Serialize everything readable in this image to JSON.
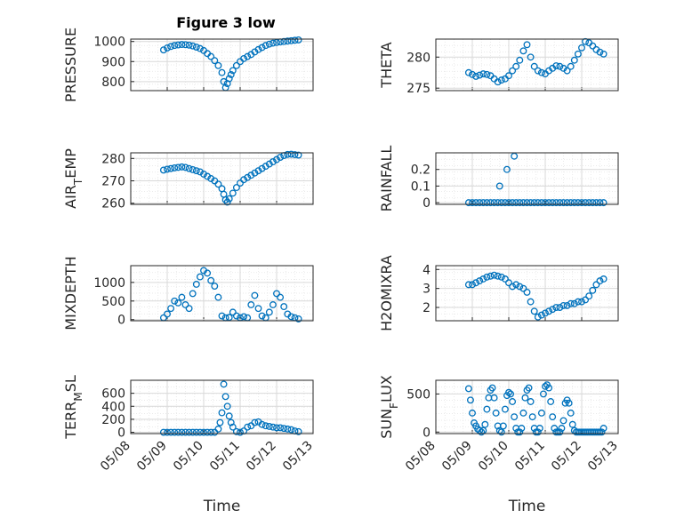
{
  "chart_data": [
    {
      "type": "scatter",
      "title": "Figure 3 low",
      "ylabel": "PRESSURE",
      "ylim": [
        755,
        1012
      ],
      "yticks": [
        800,
        900,
        1000
      ],
      "xlim": [
        0,
        5
      ],
      "xlabel": "",
      "x": [
        0.9,
        1.0,
        1.1,
        1.2,
        1.3,
        1.4,
        1.5,
        1.6,
        1.7,
        1.8,
        1.9,
        2.0,
        2.1,
        2.2,
        2.3,
        2.4,
        2.5,
        2.55,
        2.6,
        2.65,
        2.7,
        2.75,
        2.8,
        2.9,
        3.0,
        3.1,
        3.2,
        3.3,
        3.4,
        3.5,
        3.6,
        3.7,
        3.8,
        3.9,
        4.0,
        4.1,
        4.2,
        4.3,
        4.4,
        4.5,
        4.6
      ],
      "y": [
        958,
        968,
        975,
        980,
        983,
        985,
        984,
        982,
        978,
        972,
        965,
        955,
        940,
        925,
        905,
        880,
        845,
        800,
        770,
        790,
        815,
        835,
        855,
        880,
        900,
        915,
        925,
        935,
        948,
        960,
        970,
        980,
        987,
        992,
        995,
        998,
        1000,
        1002,
        1004,
        1006,
        1008
      ]
    },
    {
      "type": "scatter",
      "title": "",
      "ylabel": "THETA",
      "ylim": [
        274.6,
        282.9
      ],
      "yticks": [
        275,
        280
      ],
      "xlim": [
        0,
        5
      ],
      "xlabel": "",
      "x": [
        0.9,
        1.0,
        1.1,
        1.2,
        1.3,
        1.4,
        1.5,
        1.6,
        1.7,
        1.8,
        1.9,
        2.0,
        2.1,
        2.2,
        2.3,
        2.4,
        2.5,
        2.6,
        2.7,
        2.8,
        2.9,
        3.0,
        3.1,
        3.2,
        3.3,
        3.4,
        3.5,
        3.6,
        3.7,
        3.8,
        3.9,
        4.0,
        4.1,
        4.2,
        4.3,
        4.4,
        4.5,
        4.6
      ],
      "y": [
        277.5,
        277.2,
        276.9,
        277.1,
        277.3,
        277.2,
        277.0,
        276.5,
        276.0,
        276.3,
        276.5,
        277.0,
        277.8,
        278.5,
        279.5,
        281.0,
        282.0,
        280.0,
        278.5,
        277.8,
        277.5,
        277.3,
        277.8,
        278.2,
        278.6,
        278.5,
        278.2,
        277.8,
        278.5,
        279.5,
        280.5,
        281.5,
        282.5,
        282.3,
        281.8,
        281.2,
        280.8,
        280.5
      ]
    },
    {
      "type": "scatter",
      "title": "",
      "ylabel": "AIR_TEMP",
      "ylim": [
        259.5,
        282.5
      ],
      "yticks": [
        260,
        270,
        280
      ],
      "xlim": [
        0,
        5
      ],
      "xlabel": "",
      "x": [
        0.9,
        1.0,
        1.1,
        1.2,
        1.3,
        1.4,
        1.5,
        1.6,
        1.7,
        1.8,
        1.9,
        2.0,
        2.1,
        2.2,
        2.3,
        2.4,
        2.5,
        2.55,
        2.6,
        2.65,
        2.7,
        2.8,
        2.9,
        3.0,
        3.1,
        3.2,
        3.3,
        3.4,
        3.5,
        3.6,
        3.7,
        3.8,
        3.9,
        4.0,
        4.1,
        4.2,
        4.3,
        4.4,
        4.5,
        4.6
      ],
      "y": [
        274.8,
        275.2,
        275.5,
        275.8,
        276.0,
        276.2,
        276.0,
        275.5,
        275.0,
        274.5,
        274.0,
        273.0,
        272.0,
        271.0,
        270.0,
        268.5,
        266.5,
        264.0,
        261.5,
        260.5,
        262.0,
        264.5,
        267.0,
        269.0,
        270.5,
        271.5,
        272.5,
        273.5,
        274.5,
        275.5,
        276.5,
        277.5,
        278.5,
        279.5,
        280.5,
        281.3,
        281.8,
        281.9,
        281.7,
        281.5
      ]
    },
    {
      "type": "scatter",
      "title": "",
      "ylabel": "RAINFALL",
      "ylim": [
        -0.01,
        0.3
      ],
      "yticks": [
        0,
        0.1,
        0.2
      ],
      "xlim": [
        0,
        5
      ],
      "xlabel": "",
      "x": [
        0.9,
        1.0,
        1.1,
        1.2,
        1.3,
        1.4,
        1.5,
        1.6,
        1.7,
        1.75,
        1.8,
        1.9,
        1.95,
        2.0,
        2.1,
        2.15,
        2.2,
        2.3,
        2.4,
        2.5,
        2.6,
        2.7,
        2.8,
        2.9,
        3.0,
        3.1,
        3.2,
        3.3,
        3.4,
        3.5,
        3.6,
        3.7,
        3.8,
        3.9,
        4.0,
        4.1,
        4.2,
        4.3,
        4.4,
        4.5,
        4.6
      ],
      "y": [
        0,
        0,
        0,
        0,
        0,
        0,
        0,
        0,
        0,
        0.1,
        0,
        0,
        0.2,
        0,
        0,
        0.28,
        0,
        0,
        0,
        0,
        0,
        0,
        0,
        0,
        0,
        0,
        0,
        0,
        0,
        0,
        0,
        0,
        0,
        0,
        0,
        0,
        0,
        0,
        0,
        0,
        0
      ]
    },
    {
      "type": "scatter",
      "title": "",
      "ylabel": "MIXDEPTH",
      "ylim": [
        -30,
        1450
      ],
      "yticks": [
        0,
        500,
        1000
      ],
      "xlim": [
        0,
        5
      ],
      "xlabel": "",
      "x": [
        0.9,
        1.0,
        1.1,
        1.2,
        1.3,
        1.4,
        1.5,
        1.6,
        1.7,
        1.8,
        1.9,
        2.0,
        2.1,
        2.2,
        2.3,
        2.4,
        2.5,
        2.6,
        2.7,
        2.8,
        2.9,
        3.0,
        3.1,
        3.2,
        3.3,
        3.4,
        3.5,
        3.6,
        3.7,
        3.8,
        3.9,
        4.0,
        4.1,
        4.2,
        4.3,
        4.4,
        4.5,
        4.6
      ],
      "y": [
        50,
        150,
        300,
        500,
        450,
        600,
        400,
        300,
        700,
        950,
        1150,
        1320,
        1250,
        1050,
        900,
        600,
        100,
        50,
        60,
        200,
        100,
        50,
        80,
        50,
        400,
        650,
        300,
        100,
        50,
        200,
        400,
        700,
        600,
        350,
        150,
        80,
        50,
        20
      ]
    },
    {
      "type": "scatter",
      "title": "",
      "ylabel": "H2OMIXRA",
      "ylim": [
        1.3,
        4.2
      ],
      "yticks": [
        2,
        3,
        4
      ],
      "xlim": [
        0,
        5
      ],
      "xlabel": "",
      "x": [
        0.9,
        1.0,
        1.1,
        1.2,
        1.3,
        1.4,
        1.5,
        1.6,
        1.7,
        1.8,
        1.9,
        2.0,
        2.1,
        2.2,
        2.3,
        2.4,
        2.5,
        2.6,
        2.7,
        2.8,
        2.9,
        3.0,
        3.1,
        3.2,
        3.3,
        3.4,
        3.5,
        3.6,
        3.7,
        3.8,
        3.9,
        4.0,
        4.1,
        4.2,
        4.3,
        4.4,
        4.5,
        4.6
      ],
      "y": [
        3.2,
        3.2,
        3.3,
        3.4,
        3.5,
        3.6,
        3.65,
        3.7,
        3.65,
        3.6,
        3.5,
        3.3,
        3.1,
        3.2,
        3.1,
        3.0,
        2.8,
        2.3,
        1.8,
        1.5,
        1.6,
        1.7,
        1.8,
        1.9,
        2.0,
        2.0,
        2.1,
        2.1,
        2.2,
        2.2,
        2.3,
        2.3,
        2.4,
        2.6,
        2.9,
        3.2,
        3.4,
        3.5
      ]
    },
    {
      "type": "scatter",
      "title": "",
      "ylabel": "TERR_MSL",
      "ylim": [
        -20,
        800
      ],
      "yticks": [
        0,
        200,
        400,
        600
      ],
      "xlim": [
        0,
        5
      ],
      "xlabel": "Time",
      "xticklabels": [
        "05/08",
        "05/09",
        "05/10",
        "05/11",
        "05/12",
        "05/13"
      ],
      "x": [
        0.9,
        1.0,
        1.1,
        1.2,
        1.3,
        1.4,
        1.5,
        1.6,
        1.7,
        1.8,
        1.9,
        2.0,
        2.1,
        2.2,
        2.3,
        2.4,
        2.45,
        2.5,
        2.55,
        2.6,
        2.65,
        2.7,
        2.75,
        2.8,
        2.9,
        3.0,
        3.1,
        3.2,
        3.3,
        3.4,
        3.5,
        3.6,
        3.7,
        3.8,
        3.9,
        4.0,
        4.1,
        4.2,
        4.3,
        4.4,
        4.5,
        4.6
      ],
      "y": [
        0,
        0,
        0,
        0,
        0,
        0,
        0,
        0,
        0,
        0,
        0,
        0,
        0,
        0,
        0,
        50,
        150,
        300,
        740,
        550,
        400,
        250,
        150,
        80,
        10,
        0,
        20,
        80,
        100,
        150,
        160,
        120,
        100,
        90,
        80,
        70,
        70,
        60,
        50,
        40,
        20,
        10
      ]
    },
    {
      "type": "scatter",
      "title": "",
      "ylabel": "SUN_FLUX",
      "ylim": [
        -20,
        680
      ],
      "yticks": [
        0,
        500
      ],
      "xlim": [
        0,
        5
      ],
      "xlabel": "Time",
      "xticklabels": [
        "05/08",
        "05/09",
        "05/10",
        "05/11",
        "05/12",
        "05/13"
      ],
      "x": [
        0.9,
        0.95,
        1.0,
        1.05,
        1.1,
        1.15,
        1.2,
        1.25,
        1.3,
        1.35,
        1.4,
        1.45,
        1.5,
        1.55,
        1.6,
        1.65,
        1.7,
        1.75,
        1.8,
        1.85,
        1.9,
        1.95,
        2.0,
        2.05,
        2.1,
        2.15,
        2.2,
        2.25,
        2.3,
        2.35,
        2.4,
        2.45,
        2.5,
        2.55,
        2.6,
        2.65,
        2.7,
        2.75,
        2.8,
        2.85,
        2.9,
        2.95,
        3.0,
        3.05,
        3.1,
        3.15,
        3.2,
        3.25,
        3.3,
        3.35,
        3.4,
        3.45,
        3.5,
        3.55,
        3.6,
        3.65,
        3.7,
        3.75,
        3.8,
        3.85,
        3.9,
        3.95,
        4.0,
        4.05,
        4.1,
        4.15,
        4.2,
        4.25,
        4.3,
        4.35,
        4.4,
        4.45,
        4.5,
        4.55,
        4.6
      ],
      "y": [
        570,
        420,
        250,
        120,
        80,
        40,
        20,
        0,
        20,
        100,
        300,
        450,
        550,
        580,
        450,
        250,
        80,
        20,
        0,
        80,
        300,
        480,
        520,
        500,
        400,
        200,
        50,
        0,
        0,
        50,
        250,
        450,
        550,
        580,
        400,
        200,
        50,
        0,
        0,
        50,
        250,
        500,
        600,
        620,
        580,
        400,
        200,
        50,
        0,
        0,
        0,
        50,
        150,
        380,
        420,
        380,
        250,
        100,
        20,
        0,
        0,
        0,
        0,
        0,
        0,
        0,
        0,
        0,
        0,
        0,
        0,
        0,
        0,
        0,
        50
      ]
    }
  ]
}
